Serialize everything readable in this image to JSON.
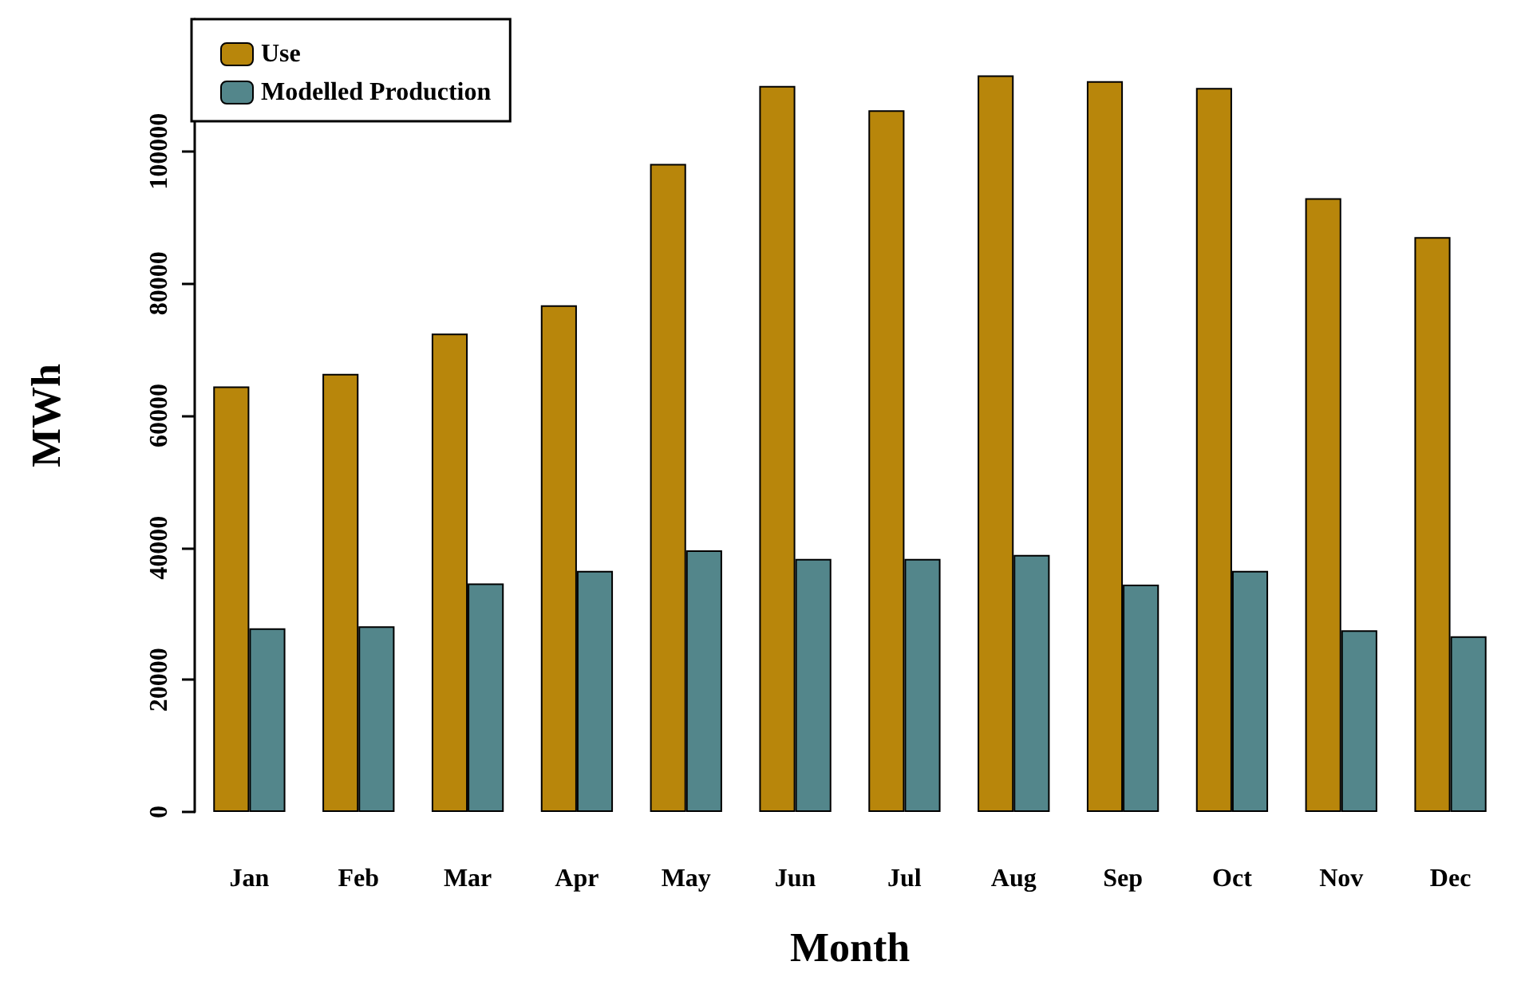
{
  "chart_data": {
    "type": "bar",
    "xlabel": "Month",
    "ylabel": "MWh",
    "categories": [
      "Jan",
      "Feb",
      "Mar",
      "Apr",
      "May",
      "Jun",
      "Jul",
      "Aug",
      "Sep",
      "Oct",
      "Nov",
      "Dec"
    ],
    "series": [
      {
        "name": "Use",
        "color": "#b8860b",
        "values": [
          64400,
          66300,
          72400,
          76700,
          98100,
          109900,
          106200,
          111500,
          110600,
          109600,
          92900,
          87000
        ]
      },
      {
        "name": "Modelled Production",
        "color": "#53868b",
        "values": [
          27800,
          28100,
          34600,
          36500,
          39600,
          38300,
          38300,
          38900,
          34400,
          36500,
          27500,
          26600
        ]
      }
    ],
    "ylim": [
      0,
      120000
    ],
    "yticks": [
      0,
      20000,
      40000,
      60000,
      80000,
      100000
    ],
    "grid": false,
    "legend": "top left"
  }
}
